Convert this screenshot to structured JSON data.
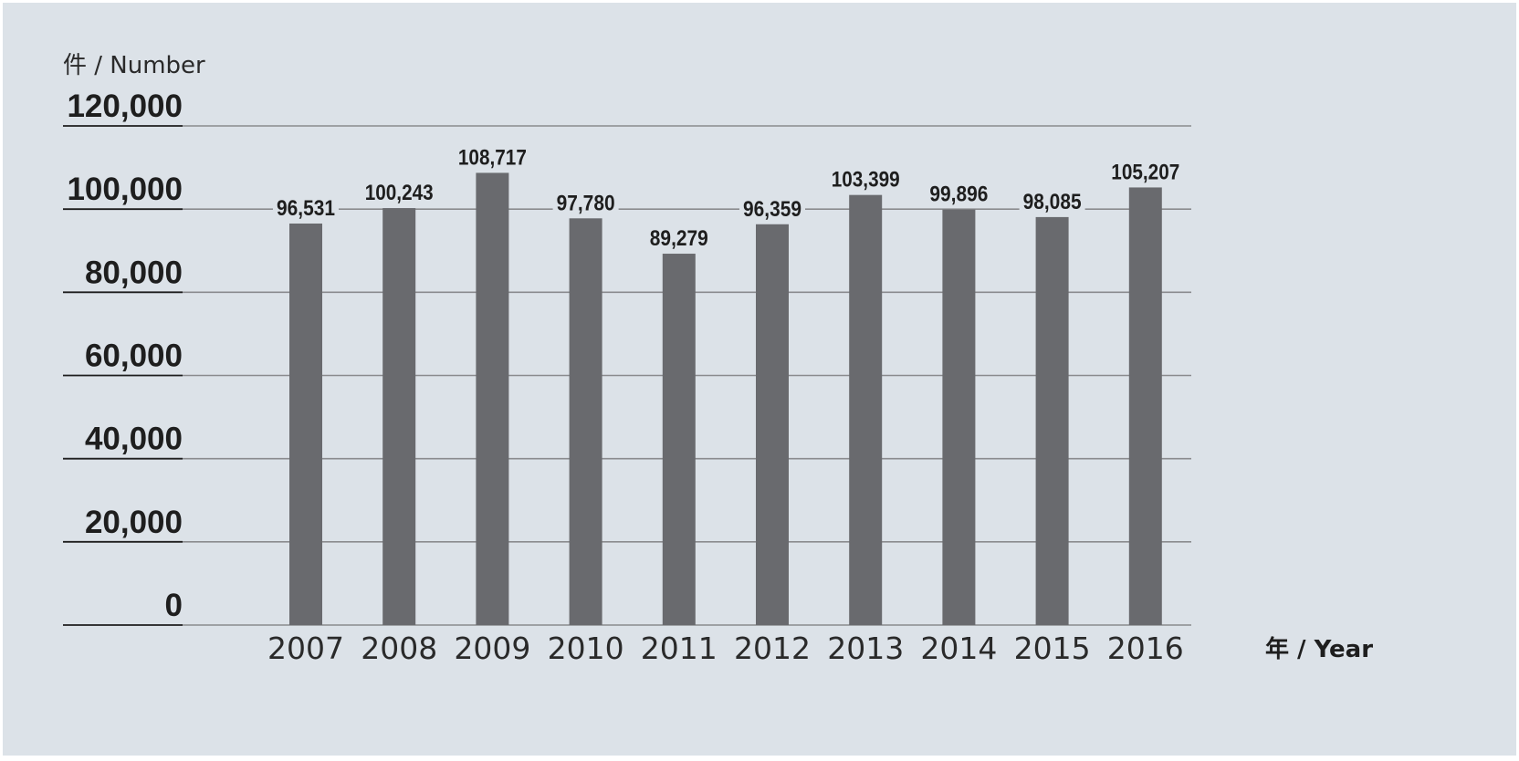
{
  "chart_data": {
    "type": "bar",
    "ylabel": "件 / Number",
    "xlabel": "年 / Year",
    "ylim": [
      0,
      120000
    ],
    "yticks": [
      0,
      20000,
      40000,
      60000,
      80000,
      100000,
      120000
    ],
    "ytick_labels": [
      "0",
      "20,000",
      "40,000",
      "60,000",
      "80,000",
      "100,000",
      "120,000"
    ],
    "categories": [
      "2007",
      "2008",
      "2009",
      "2010",
      "2011",
      "2012",
      "2013",
      "2014",
      "2015",
      "2016"
    ],
    "values": [
      96531,
      100243,
      108717,
      97780,
      89279,
      96359,
      103399,
      99896,
      98085,
      105207
    ],
    "value_labels": [
      "96,531",
      "100,243",
      "108,717",
      "97,780",
      "89,279",
      "96,359",
      "103,399",
      "99,896",
      "98,085",
      "105,207"
    ],
    "grid": true,
    "colors": {
      "bar": "#696a6e",
      "background": "#dce2e8",
      "grid": "#8a8b8e",
      "axis": "#1e1e1e"
    }
  }
}
